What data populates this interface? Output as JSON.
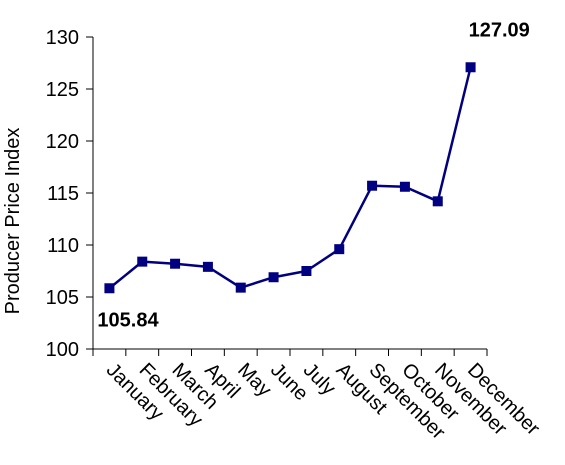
{
  "chart_data": {
    "type": "line",
    "title": "",
    "xlabel": "",
    "ylabel": "Producer Price Index",
    "categories": [
      "January",
      "February",
      "March",
      "April",
      "May",
      "June",
      "July",
      "August",
      "September",
      "October",
      "November",
      "December"
    ],
    "series": [
      {
        "values": [
          105.84,
          108.4,
          108.2,
          107.9,
          105.9,
          106.9,
          107.5,
          109.6,
          115.7,
          115.6,
          114.2,
          127.09
        ],
        "color": "#000080"
      }
    ],
    "ylim": [
      100,
      130
    ],
    "yticks": [
      "100",
      "105",
      "110",
      "115",
      "120",
      "125",
      "130"
    ],
    "annotations": [
      {
        "category_index": 0,
        "text": "105.84"
      },
      {
        "category_index": 11,
        "text": "127.09"
      }
    ],
    "grid": false,
    "legend": "none"
  }
}
